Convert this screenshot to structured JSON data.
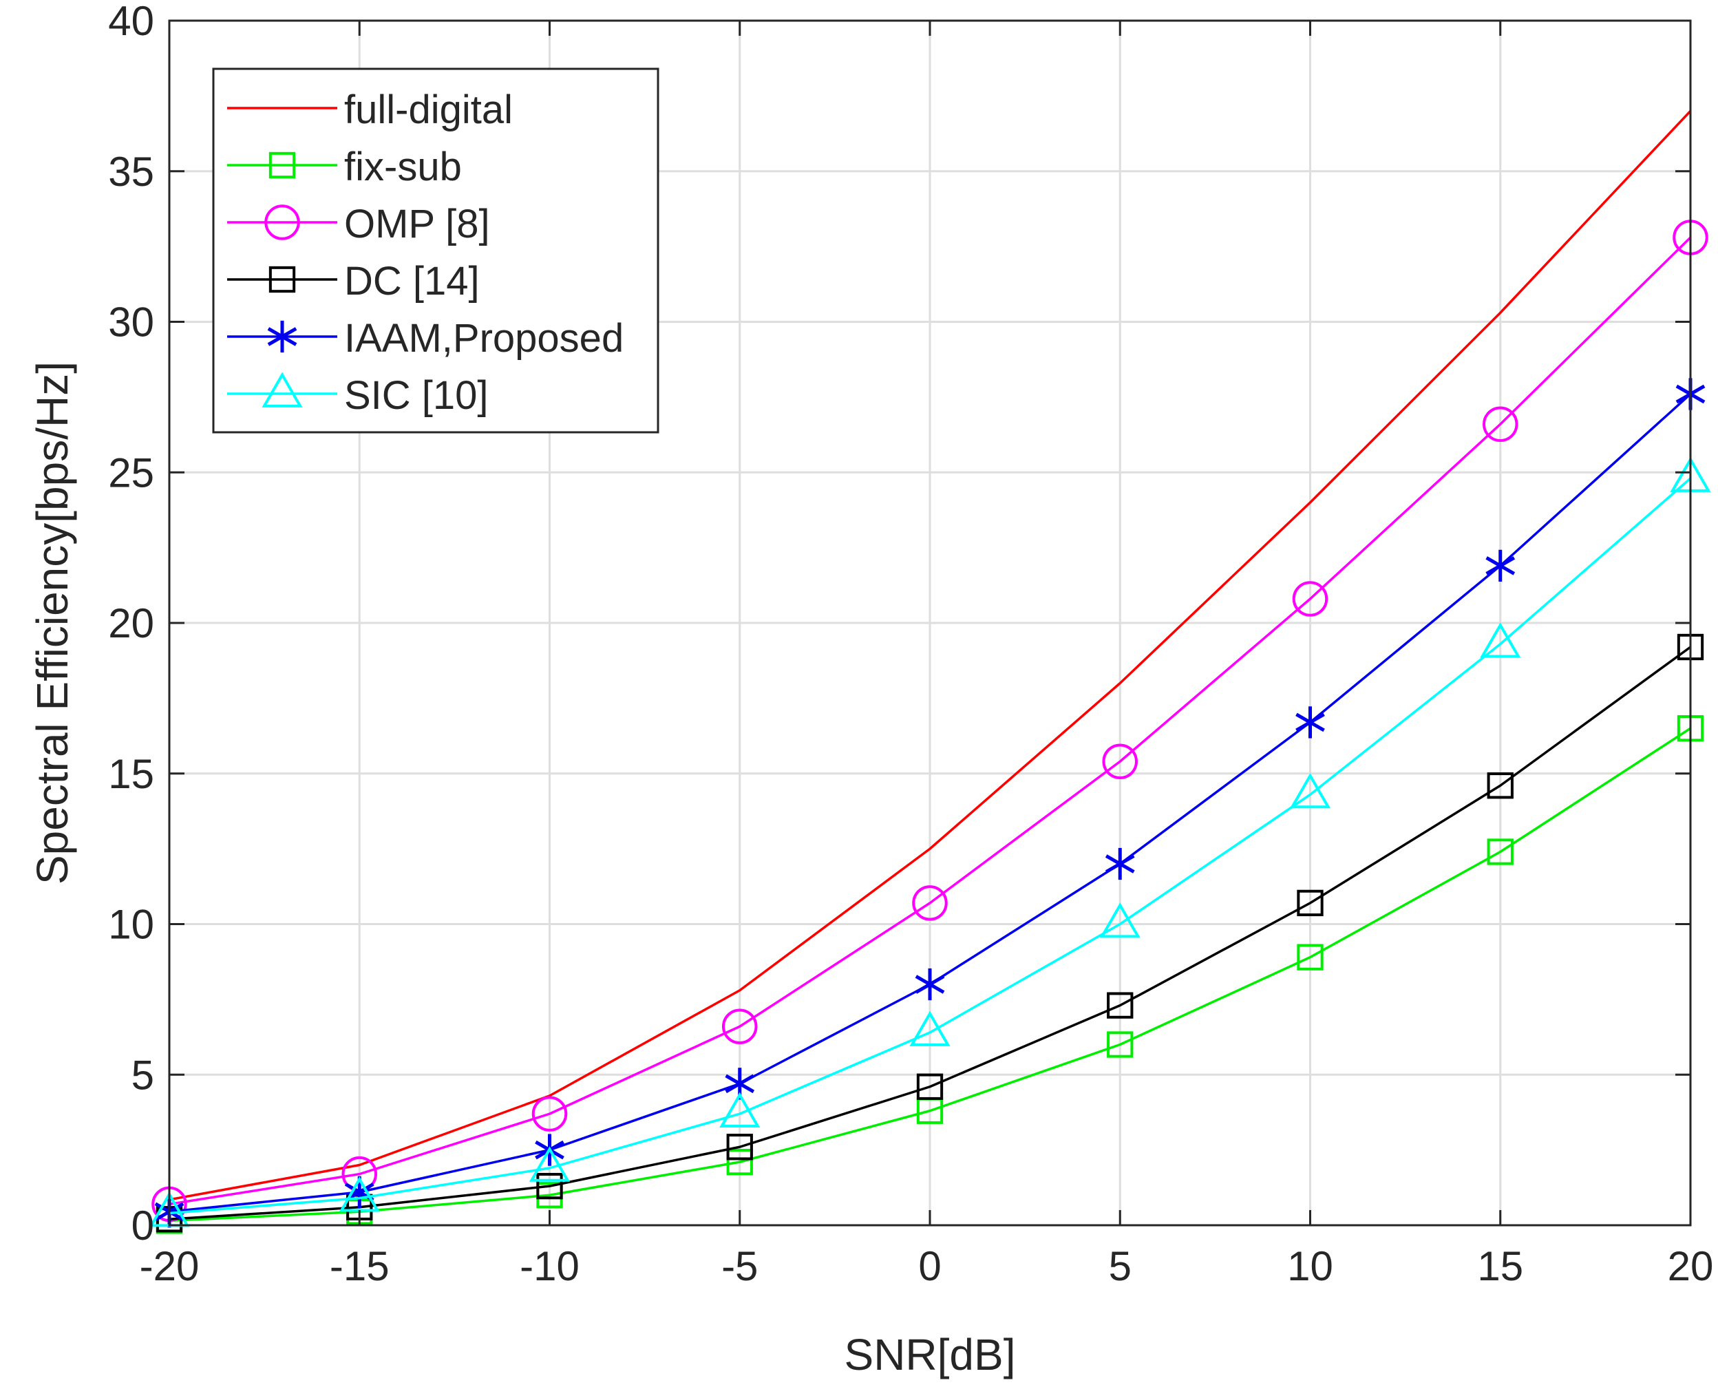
{
  "chart_data": {
    "type": "line",
    "title": "",
    "xlabel": "SNR[dB]",
    "ylabel": "Spectral Efficiency[bps/Hz]",
    "xlim": [
      -20,
      20
    ],
    "ylim": [
      0,
      40
    ],
    "grid": true,
    "legend_position": "top-left",
    "x": [
      -20,
      -15,
      -10,
      -5,
      0,
      5,
      10,
      15,
      20
    ],
    "x_tick_labels": [
      "-20",
      "-15",
      "-10",
      "-5",
      "0",
      "5",
      "10",
      "15",
      "20"
    ],
    "y_ticks": [
      0,
      5,
      10,
      15,
      20,
      25,
      30,
      35,
      40
    ],
    "y_tick_labels": [
      "0",
      "5",
      "10",
      "15",
      "20",
      "25",
      "30",
      "35",
      "40"
    ],
    "series": [
      {
        "name": "full-digital",
        "color": "#ff0000",
        "marker": "none",
        "values": [
          0.85,
          2.0,
          4.3,
          7.8,
          12.5,
          18.0,
          24.0,
          30.3,
          37.0
        ]
      },
      {
        "name": "fix-sub",
        "color": "#00ee00",
        "marker": "square",
        "values": [
          0.15,
          0.45,
          1.0,
          2.1,
          3.8,
          6.0,
          8.9,
          12.4,
          16.5
        ]
      },
      {
        "name": "OMP [8]",
        "color": "#ff00ff",
        "marker": "circle",
        "values": [
          0.7,
          1.7,
          3.7,
          6.6,
          10.7,
          15.4,
          20.8,
          26.6,
          32.8
        ]
      },
      {
        "name": "DC [14]",
        "color": "#000000",
        "marker": "square",
        "values": [
          0.2,
          0.6,
          1.3,
          2.6,
          4.6,
          7.3,
          10.7,
          14.6,
          19.2
        ]
      },
      {
        "name": "IAAM,Proposed",
        "color": "#0000ee",
        "marker": "asterisk",
        "values": [
          0.45,
          1.1,
          2.5,
          4.7,
          8.0,
          12.0,
          16.7,
          21.9,
          27.6
        ]
      },
      {
        "name": "SIC [10]",
        "color": "#00ffff",
        "marker": "triangle",
        "values": [
          0.4,
          0.9,
          1.9,
          3.7,
          6.4,
          10.0,
          14.3,
          19.3,
          24.8
        ]
      }
    ]
  }
}
